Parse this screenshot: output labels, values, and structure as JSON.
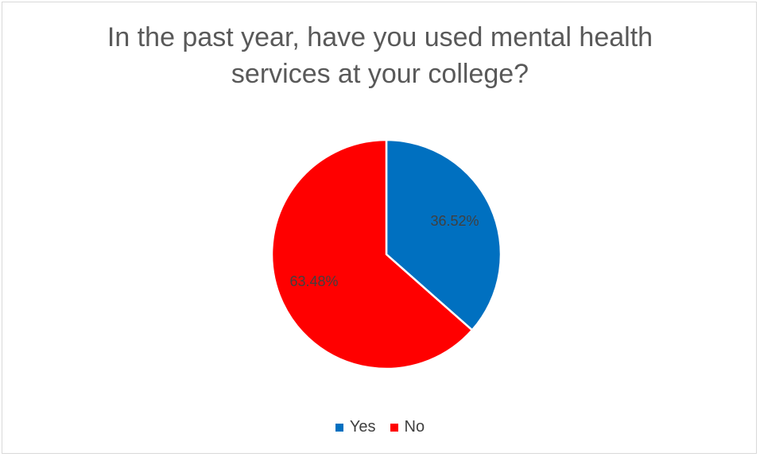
{
  "chart_data": {
    "type": "pie",
    "title": "In the past year, have you used mental health services at your college?",
    "title_lines": [
      "In the past year, have you used mental health",
      "services at your college?"
    ],
    "categories": [
      "Yes",
      "No"
    ],
    "values": [
      36.52,
      63.48
    ],
    "labels": [
      "36.52%",
      "63.48%"
    ],
    "colors": [
      "#0070C0",
      "#FF0000"
    ],
    "legend_position": "bottom"
  }
}
